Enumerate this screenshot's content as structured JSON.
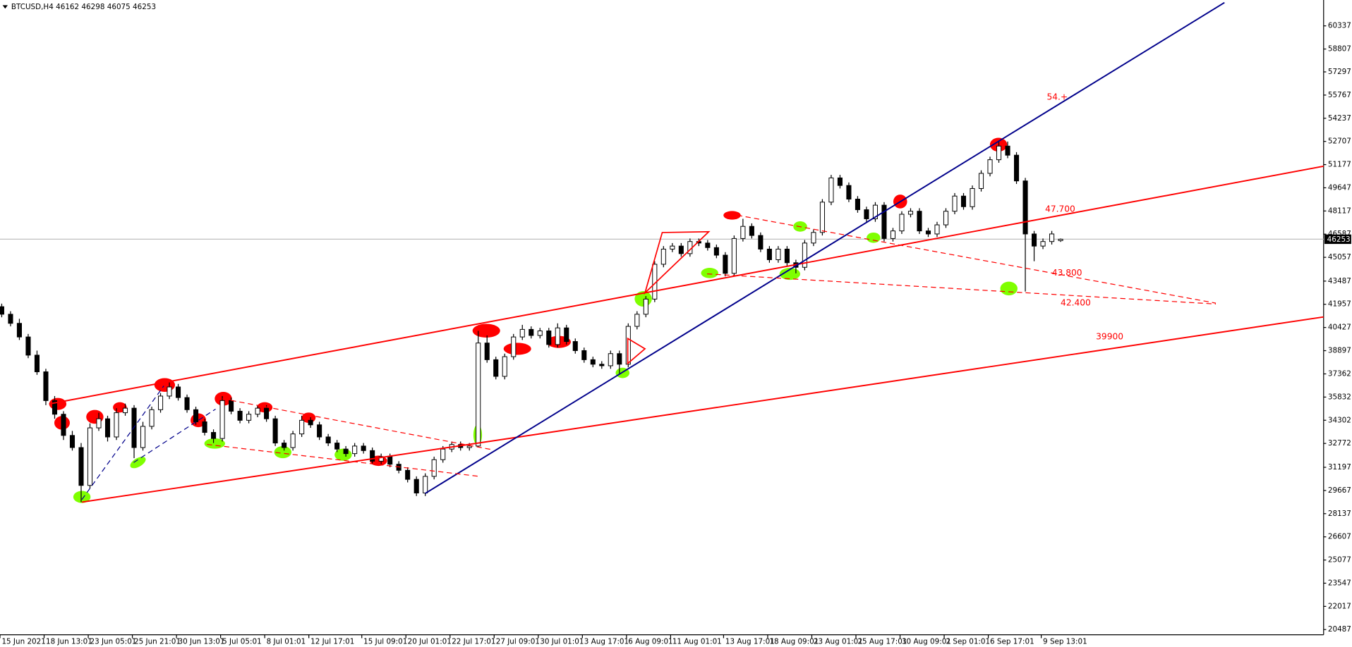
{
  "chart_data": {
    "type": "candlestick",
    "title": "BTCUSD,H4  46162 46298 46075 46253",
    "bull_color": "#ffffff",
    "bear_color": "#000000",
    "last_price": 46253,
    "xlim": [
      0,
      150
    ],
    "ylim": [
      20144,
      62043
    ],
    "yticks": [
      60337,
      58807,
      57297,
      55767,
      54237,
      52707,
      51177,
      49647,
      48117,
      46587,
      45057,
      43487,
      41957,
      40427,
      38897,
      37362,
      35832,
      34302,
      32772,
      31197,
      29667,
      28137,
      26607,
      25077,
      23547,
      22017,
      20487
    ],
    "xticks": [
      {
        "value": 0,
        "label": "15 Jun 2021"
      },
      {
        "value": 5,
        "label": "18 Jun 13:01"
      },
      {
        "value": 10,
        "label": "23 Jun 05:01"
      },
      {
        "value": 15,
        "label": "25 Jun 21:01"
      },
      {
        "value": 20,
        "label": "30 Jun 13:01"
      },
      {
        "value": 25,
        "label": "5 Jul 05:01"
      },
      {
        "value": 30,
        "label": "8 Jul 01:01"
      },
      {
        "value": 35,
        "label": "12 Jul 17:01"
      },
      {
        "value": 41,
        "label": "15 Jul 09:01"
      },
      {
        "value": 46,
        "label": "20 Jul 01:01"
      },
      {
        "value": 51,
        "label": "22 Jul 17:01"
      },
      {
        "value": 56,
        "label": "27 Jul 09:01"
      },
      {
        "value": 61,
        "label": "30 Jul 01:01"
      },
      {
        "value": 66,
        "label": "3 Aug 17:01"
      },
      {
        "value": 71,
        "label": "6 Aug 09:01"
      },
      {
        "value": 76,
        "label": "11 Aug 01:01"
      },
      {
        "value": 82,
        "label": "13 Aug 17:01"
      },
      {
        "value": 87,
        "label": "18 Aug 09:01"
      },
      {
        "value": 92,
        "label": "23 Aug 01:01"
      },
      {
        "value": 97,
        "label": "25 Aug 17:01"
      },
      {
        "value": 102,
        "label": "30 Aug 09:01"
      },
      {
        "value": 107,
        "label": "2 Sep 01:01"
      },
      {
        "value": 112,
        "label": "6 Sep 17:01"
      },
      {
        "value": 118,
        "label": "9 Sep 13:01"
      }
    ],
    "annotations": [
      "54.+",
      "47.700",
      "43.800",
      "42.400",
      "39900"
    ],
    "ohlc": [
      [
        41800,
        42000,
        41100,
        41300
      ],
      [
        41300,
        41500,
        40500,
        40700
      ],
      [
        40700,
        41000,
        39600,
        39800
      ],
      [
        39800,
        40000,
        38400,
        38600
      ],
      [
        38600,
        38900,
        37300,
        37500
      ],
      [
        37500,
        37700,
        35300,
        35600
      ],
      [
        35600,
        35900,
        34400,
        34700
      ],
      [
        34700,
        34900,
        33000,
        33300
      ],
      [
        33300,
        33600,
        32300,
        32500
      ],
      [
        32500,
        32800,
        28900,
        30000
      ],
      [
        30000,
        34100,
        29800,
        33800
      ],
      [
        33800,
        34800,
        33600,
        34400
      ],
      [
        34400,
        34600,
        32900,
        33200
      ],
      [
        33200,
        35100,
        33000,
        34800
      ],
      [
        34800,
        35400,
        34600,
        35100
      ],
      [
        35100,
        35300,
        31800,
        32500
      ],
      [
        32500,
        34200,
        32300,
        33900
      ],
      [
        33900,
        35200,
        33700,
        35000
      ],
      [
        35000,
        36100,
        34800,
        35900
      ],
      [
        35900,
        36800,
        35700,
        36500
      ],
      [
        36500,
        36700,
        35600,
        35800
      ],
      [
        35800,
        36000,
        34800,
        35000
      ],
      [
        35000,
        35200,
        34000,
        34200
      ],
      [
        34200,
        34400,
        33300,
        33500
      ],
      [
        33500,
        33700,
        32800,
        33100
      ],
      [
        33100,
        35900,
        32900,
        35600
      ],
      [
        35600,
        35800,
        34700,
        34900
      ],
      [
        34900,
        35100,
        34100,
        34300
      ],
      [
        34300,
        34900,
        34100,
        34700
      ],
      [
        34700,
        35300,
        34500,
        35100
      ],
      [
        35100,
        35300,
        34200,
        34400
      ],
      [
        34400,
        34600,
        32600,
        32800
      ],
      [
        32800,
        33000,
        32300,
        32500
      ],
      [
        32500,
        33600,
        32300,
        33400
      ],
      [
        33400,
        34600,
        33200,
        34300
      ],
      [
        34300,
        34500,
        33800,
        34000
      ],
      [
        34000,
        34200,
        33000,
        33200
      ],
      [
        33200,
        33400,
        32600,
        32800
      ],
      [
        32800,
        33000,
        32200,
        32400
      ],
      [
        32400,
        32600,
        31900,
        32100
      ],
      [
        32100,
        32800,
        31900,
        32600
      ],
      [
        32600,
        32800,
        32100,
        32300
      ],
      [
        32300,
        32500,
        31400,
        31600
      ],
      [
        31600,
        32100,
        31400,
        31900
      ],
      [
        31900,
        32100,
        31200,
        31400
      ],
      [
        31400,
        31600,
        30800,
        31000
      ],
      [
        31000,
        31200,
        30200,
        30400
      ],
      [
        30400,
        30600,
        29300,
        29500
      ],
      [
        29500,
        30800,
        29300,
        30600
      ],
      [
        30600,
        31900,
        30400,
        31700
      ],
      [
        31700,
        32600,
        31500,
        32400
      ],
      [
        32400,
        32900,
        32200,
        32700
      ],
      [
        32700,
        32900,
        32300,
        32500
      ],
      [
        32500,
        32800,
        32300,
        32600
      ],
      [
        32600,
        40200,
        32500,
        39400
      ],
      [
        39400,
        39900,
        38100,
        38300
      ],
      [
        38300,
        38500,
        37000,
        37200
      ],
      [
        37200,
        38700,
        37000,
        38500
      ],
      [
        38500,
        40000,
        38300,
        39800
      ],
      [
        39800,
        40600,
        39600,
        40300
      ],
      [
        40300,
        40500,
        39700,
        39900
      ],
      [
        39900,
        40400,
        39700,
        40200
      ],
      [
        40200,
        40400,
        39100,
        39300
      ],
      [
        39300,
        40700,
        39100,
        40400
      ],
      [
        40400,
        40600,
        39300,
        39500
      ],
      [
        39500,
        39700,
        38700,
        38900
      ],
      [
        38900,
        39100,
        38100,
        38300
      ],
      [
        38300,
        38500,
        37800,
        38000
      ],
      [
        38000,
        38200,
        37700,
        37900
      ],
      [
        37900,
        38900,
        37700,
        38700
      ],
      [
        38700,
        38900,
        37400,
        38000
      ],
      [
        38000,
        40700,
        37800,
        40500
      ],
      [
        40500,
        41500,
        40300,
        41300
      ],
      [
        41300,
        42500,
        41100,
        42300
      ],
      [
        42300,
        44800,
        42100,
        44600
      ],
      [
        44600,
        45800,
        44400,
        45600
      ],
      [
        45600,
        46000,
        45400,
        45800
      ],
      [
        45800,
        46000,
        45100,
        45300
      ],
      [
        45300,
        46300,
        45100,
        46100
      ],
      [
        46100,
        46300,
        45800,
        46000
      ],
      [
        46000,
        46200,
        45500,
        45700
      ],
      [
        45700,
        45900,
        45000,
        45200
      ],
      [
        45200,
        45400,
        43800,
        44000
      ],
      [
        44000,
        46500,
        43800,
        46300
      ],
      [
        46300,
        47600,
        46100,
        47100
      ],
      [
        47100,
        47300,
        46300,
        46500
      ],
      [
        46500,
        46700,
        45400,
        45600
      ],
      [
        45600,
        45800,
        44700,
        44900
      ],
      [
        44900,
        45800,
        44700,
        45600
      ],
      [
        45600,
        45800,
        44500,
        44700
      ],
      [
        44700,
        44900,
        44000,
        44400
      ],
      [
        44400,
        46200,
        44200,
        46000
      ],
      [
        46000,
        46900,
        45800,
        46700
      ],
      [
        46700,
        48900,
        46500,
        48700
      ],
      [
        48700,
        50500,
        48500,
        50300
      ],
      [
        50300,
        50500,
        49600,
        49800
      ],
      [
        49800,
        50000,
        48700,
        48900
      ],
      [
        48900,
        49100,
        48000,
        48200
      ],
      [
        48200,
        48400,
        47400,
        47600
      ],
      [
        47600,
        48700,
        47400,
        48500
      ],
      [
        48500,
        48700,
        46100,
        46300
      ],
      [
        46300,
        47000,
        46100,
        46800
      ],
      [
        46800,
        48100,
        46600,
        47900
      ],
      [
        47900,
        48300,
        47700,
        48100
      ],
      [
        48100,
        48300,
        46600,
        46800
      ],
      [
        46800,
        47000,
        46400,
        46600
      ],
      [
        46600,
        47400,
        46400,
        47200
      ],
      [
        47200,
        48300,
        47000,
        48100
      ],
      [
        48100,
        49300,
        47900,
        49100
      ],
      [
        49100,
        49300,
        48200,
        48400
      ],
      [
        48400,
        49800,
        48200,
        49600
      ],
      [
        49600,
        50800,
        49400,
        50600
      ],
      [
        50600,
        51700,
        50400,
        51500
      ],
      [
        51500,
        52700,
        51300,
        52400
      ],
      [
        52400,
        52700,
        51600,
        51800
      ],
      [
        51800,
        52000,
        49900,
        50100
      ],
      [
        50100,
        50300,
        42800,
        46600
      ],
      [
        46600,
        46800,
        44800,
        45800
      ],
      [
        45800,
        46300,
        45600,
        46100
      ],
      [
        46100,
        46800,
        45900,
        46600
      ],
      [
        46162,
        46298,
        46075,
        46253
      ]
    ]
  }
}
